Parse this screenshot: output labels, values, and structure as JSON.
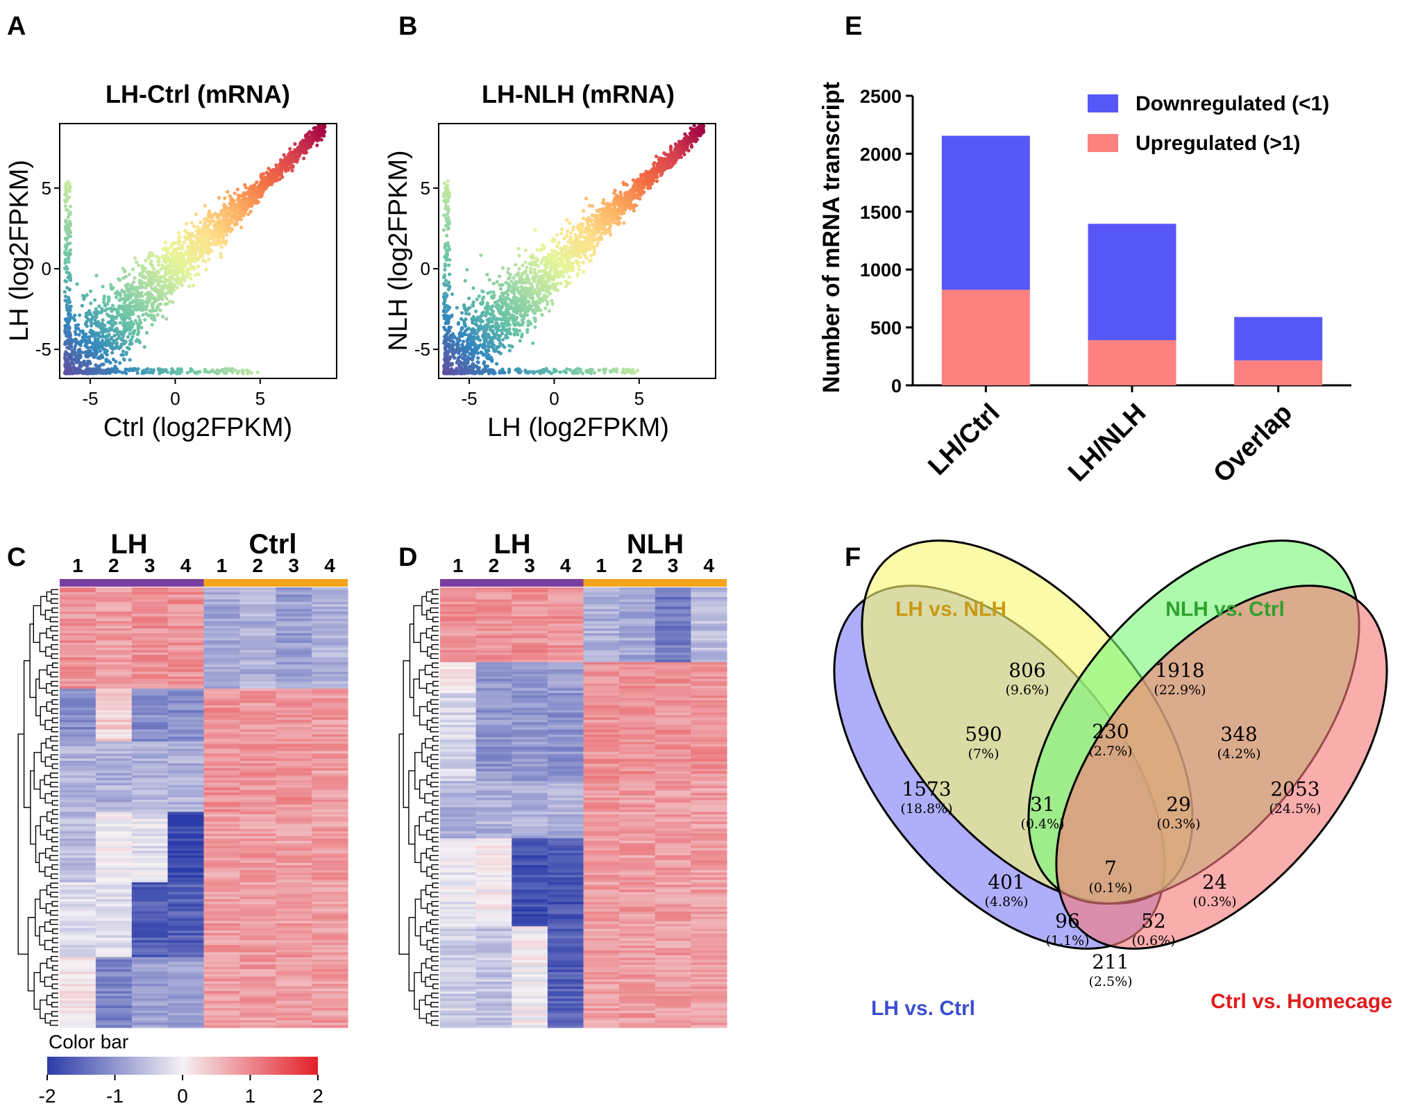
{
  "panels": {
    "A": "A",
    "B": "B",
    "C": "C",
    "D": "D",
    "E": "E",
    "F": "F"
  },
  "colors": {
    "down": "#5757f7",
    "up": "#fd8181",
    "heat_low": "#2b3ba8",
    "heat_mid": "#f5f1f4",
    "heat_high": "#e31f27",
    "bar_lh": "#7a3ea0",
    "bar_other": "#f5a31b",
    "venn_lhctrl": "#7c7cf7",
    "venn_lhnlh": "#f7f773",
    "venn_nlhctrl": "#7af77a",
    "venn_ctrlhome": "#f77a7a",
    "set_lhctrl": "#3b4fd1",
    "set_lhnlh": "#c79a17",
    "set_nlhctrl": "#2ea12e",
    "set_ctrlhome": "#e01c1c"
  },
  "chart_data": [
    {
      "type": "scatter",
      "panel": "A",
      "title": "LH-Ctrl (mRNA)",
      "xlabel": "Ctrl (log2FPKM)",
      "ylabel": "LH (log2FPKM)",
      "xlim": [
        -6.8,
        9.5
      ],
      "ylim": [
        -6.8,
        9.0
      ],
      "xticks": [
        -5,
        0,
        5
      ],
      "yticks": [
        -5,
        0,
        5
      ],
      "xtick_labels": [
        "-5",
        "0",
        "5"
      ],
      "ytick_labels": [
        "-5",
        "0",
        "5"
      ],
      "colormap": "spectral (blue low to red high)",
      "description": "mRNA expression scatter, points along y = x from -6.5 to 8.8, with spread at low expression"
    },
    {
      "type": "scatter",
      "panel": "B",
      "title": "LH-NLH (mRNA)",
      "xlabel": "LH (log2FPKM)",
      "ylabel": "NLH (log2FPKM)",
      "xlim": [
        -6.8,
        9.5
      ],
      "ylim": [
        -6.8,
        9.0
      ],
      "xticks": [
        -5,
        0,
        5
      ],
      "yticks": [
        -5,
        0,
        5
      ],
      "xtick_labels": [
        "-5",
        "0",
        "5"
      ],
      "ytick_labels": [
        "-5",
        "0",
        "5"
      ],
      "colormap": "spectral (blue low to red high)",
      "description": "mRNA expression scatter, points along y = x from -6.5 to 8.8"
    },
    {
      "type": "heatmap",
      "panel": "C",
      "groups": [
        {
          "name": "LH",
          "samples": [
            "1",
            "2",
            "3",
            "4"
          ]
        },
        {
          "name": "Ctrl",
          "samples": [
            "1",
            "2",
            "3",
            "4"
          ]
        }
      ],
      "colorbar": {
        "label": "Color bar",
        "ticks": [
          "-2",
          "-1",
          "0",
          "1",
          "2"
        ],
        "range": [
          -2,
          2
        ]
      },
      "blocks": [
        {
          "rows": 0.23,
          "values": [
            0.9,
            0.8,
            0.9,
            0.9,
            -0.8,
            -0.7,
            -0.9,
            -0.7
          ]
        },
        {
          "rows": 0.12,
          "values": [
            -1.1,
            0.3,
            -1.1,
            -1.1,
            0.9,
            0.8,
            0.9,
            0.8
          ]
        },
        {
          "rows": 0.16,
          "values": [
            -0.7,
            -0.7,
            -0.7,
            -0.7,
            0.9,
            0.9,
            0.9,
            0.8
          ]
        },
        {
          "rows": 0.16,
          "values": [
            -0.6,
            0.0,
            -0.2,
            -1.9,
            0.8,
            0.8,
            0.8,
            0.8
          ]
        },
        {
          "rows": 0.17,
          "values": [
            -0.2,
            -0.2,
            -1.6,
            -1.6,
            0.8,
            0.8,
            0.8,
            0.8
          ]
        },
        {
          "rows": 0.16,
          "values": [
            0.1,
            -1.2,
            -0.9,
            -0.9,
            0.8,
            0.8,
            0.8,
            0.8
          ]
        }
      ]
    },
    {
      "type": "heatmap",
      "panel": "D",
      "groups": [
        {
          "name": "LH",
          "samples": [
            "1",
            "2",
            "3",
            "4"
          ]
        },
        {
          "name": "NLH",
          "samples": [
            "1",
            "2",
            "3",
            "4"
          ]
        }
      ],
      "blocks": [
        {
          "rows": 0.17,
          "values": [
            0.9,
            0.9,
            0.9,
            0.9,
            -0.7,
            -0.8,
            -1.3,
            -0.6
          ]
        },
        {
          "rows": 0.07,
          "values": [
            0.2,
            -1.0,
            -0.9,
            -0.9,
            0.9,
            0.9,
            0.9,
            0.9
          ]
        },
        {
          "rows": 0.2,
          "values": [
            -0.3,
            -1.0,
            -1.0,
            -1.0,
            0.9,
            0.9,
            0.9,
            0.9
          ]
        },
        {
          "rows": 0.13,
          "values": [
            -0.7,
            -0.7,
            -0.7,
            -0.7,
            0.8,
            0.8,
            0.8,
            0.8
          ]
        },
        {
          "rows": 0.2,
          "values": [
            -0.1,
            0.0,
            -1.8,
            -1.7,
            0.8,
            0.8,
            0.8,
            0.8
          ]
        },
        {
          "rows": 0.23,
          "values": [
            -0.4,
            -0.5,
            0.0,
            -1.6,
            0.8,
            0.8,
            0.8,
            0.8
          ]
        }
      ]
    },
    {
      "type": "bar",
      "panel": "E",
      "stacked": true,
      "categories": [
        "LH/Ctrl",
        "LH/NLH",
        "Overlap"
      ],
      "series": [
        {
          "name": "Downregulated (<1)",
          "values": [
            1330,
            1005,
            375
          ]
        },
        {
          "name": "Upregulated (>1)",
          "values": [
            825,
            390,
            215
          ]
        }
      ],
      "ylabel": "Number of mRNA transcript",
      "ylim": [
        0,
        2500
      ],
      "yticks": [
        0,
        500,
        1000,
        1500,
        2000,
        2500
      ],
      "ytick_labels": [
        "0",
        "500",
        "1000",
        "1500",
        "2000",
        "2500"
      ],
      "legend_position": "top-right"
    },
    {
      "type": "venn",
      "panel": "F",
      "sets": [
        "LH vs. Ctrl",
        "LH vs. NLH",
        "NLH vs. Ctrl",
        "Ctrl vs. Homecage"
      ],
      "regions": [
        {
          "sets": [
            "LH vs. NLH"
          ],
          "count": "806",
          "pct": "(9.6%)"
        },
        {
          "sets": [
            "NLH vs. Ctrl"
          ],
          "count": "1918",
          "pct": "(22.9%)"
        },
        {
          "sets": [
            "LH vs. Ctrl",
            "LH vs. NLH"
          ],
          "count": "590",
          "pct": "(7%)"
        },
        {
          "sets": [
            "LH vs. NLH",
            "NLH vs. Ctrl"
          ],
          "count": "230",
          "pct": "(2.7%)"
        },
        {
          "sets": [
            "NLH vs. Ctrl",
            "Ctrl vs. Homecage"
          ],
          "count": "348",
          "pct": "(4.2%)"
        },
        {
          "sets": [
            "LH vs. Ctrl"
          ],
          "count": "1573",
          "pct": "(18.8%)"
        },
        {
          "sets": [
            "LH vs. Ctrl",
            "LH vs. NLH",
            "NLH vs. Ctrl"
          ],
          "count": "31",
          "pct": "(0.4%)"
        },
        {
          "sets": [
            "LH vs. NLH",
            "NLH vs. Ctrl",
            "Ctrl vs. Homecage"
          ],
          "count": "29",
          "pct": "(0.3%)"
        },
        {
          "sets": [
            "Ctrl vs. Homecage"
          ],
          "count": "2053",
          "pct": "(24.5%)"
        },
        {
          "sets": [
            "LH vs. Ctrl",
            "LH vs. NLH",
            "NLH vs. Ctrl",
            "Ctrl vs. Homecage"
          ],
          "count": "7",
          "pct": "(0.1%)"
        },
        {
          "sets": [
            "LH vs. Ctrl",
            "NLH vs. Ctrl"
          ],
          "count": "401",
          "pct": "(4.8%)"
        },
        {
          "sets": [
            "LH vs. NLH",
            "Ctrl vs. Homecage"
          ],
          "count": "24",
          "pct": "(0.3%)"
        },
        {
          "sets": [
            "LH vs. Ctrl",
            "NLH vs. Ctrl",
            "Ctrl vs. Homecage"
          ],
          "count": "96",
          "pct": "(1.1%)"
        },
        {
          "sets": [
            "LH vs. Ctrl",
            "LH vs. NLH",
            "Ctrl vs. Homecage"
          ],
          "count": "52",
          "pct": "(0.6%)"
        },
        {
          "sets": [
            "LH vs. Ctrl",
            "Ctrl vs. Homecage"
          ],
          "count": "211",
          "pct": "(2.5%)"
        }
      ]
    }
  ]
}
